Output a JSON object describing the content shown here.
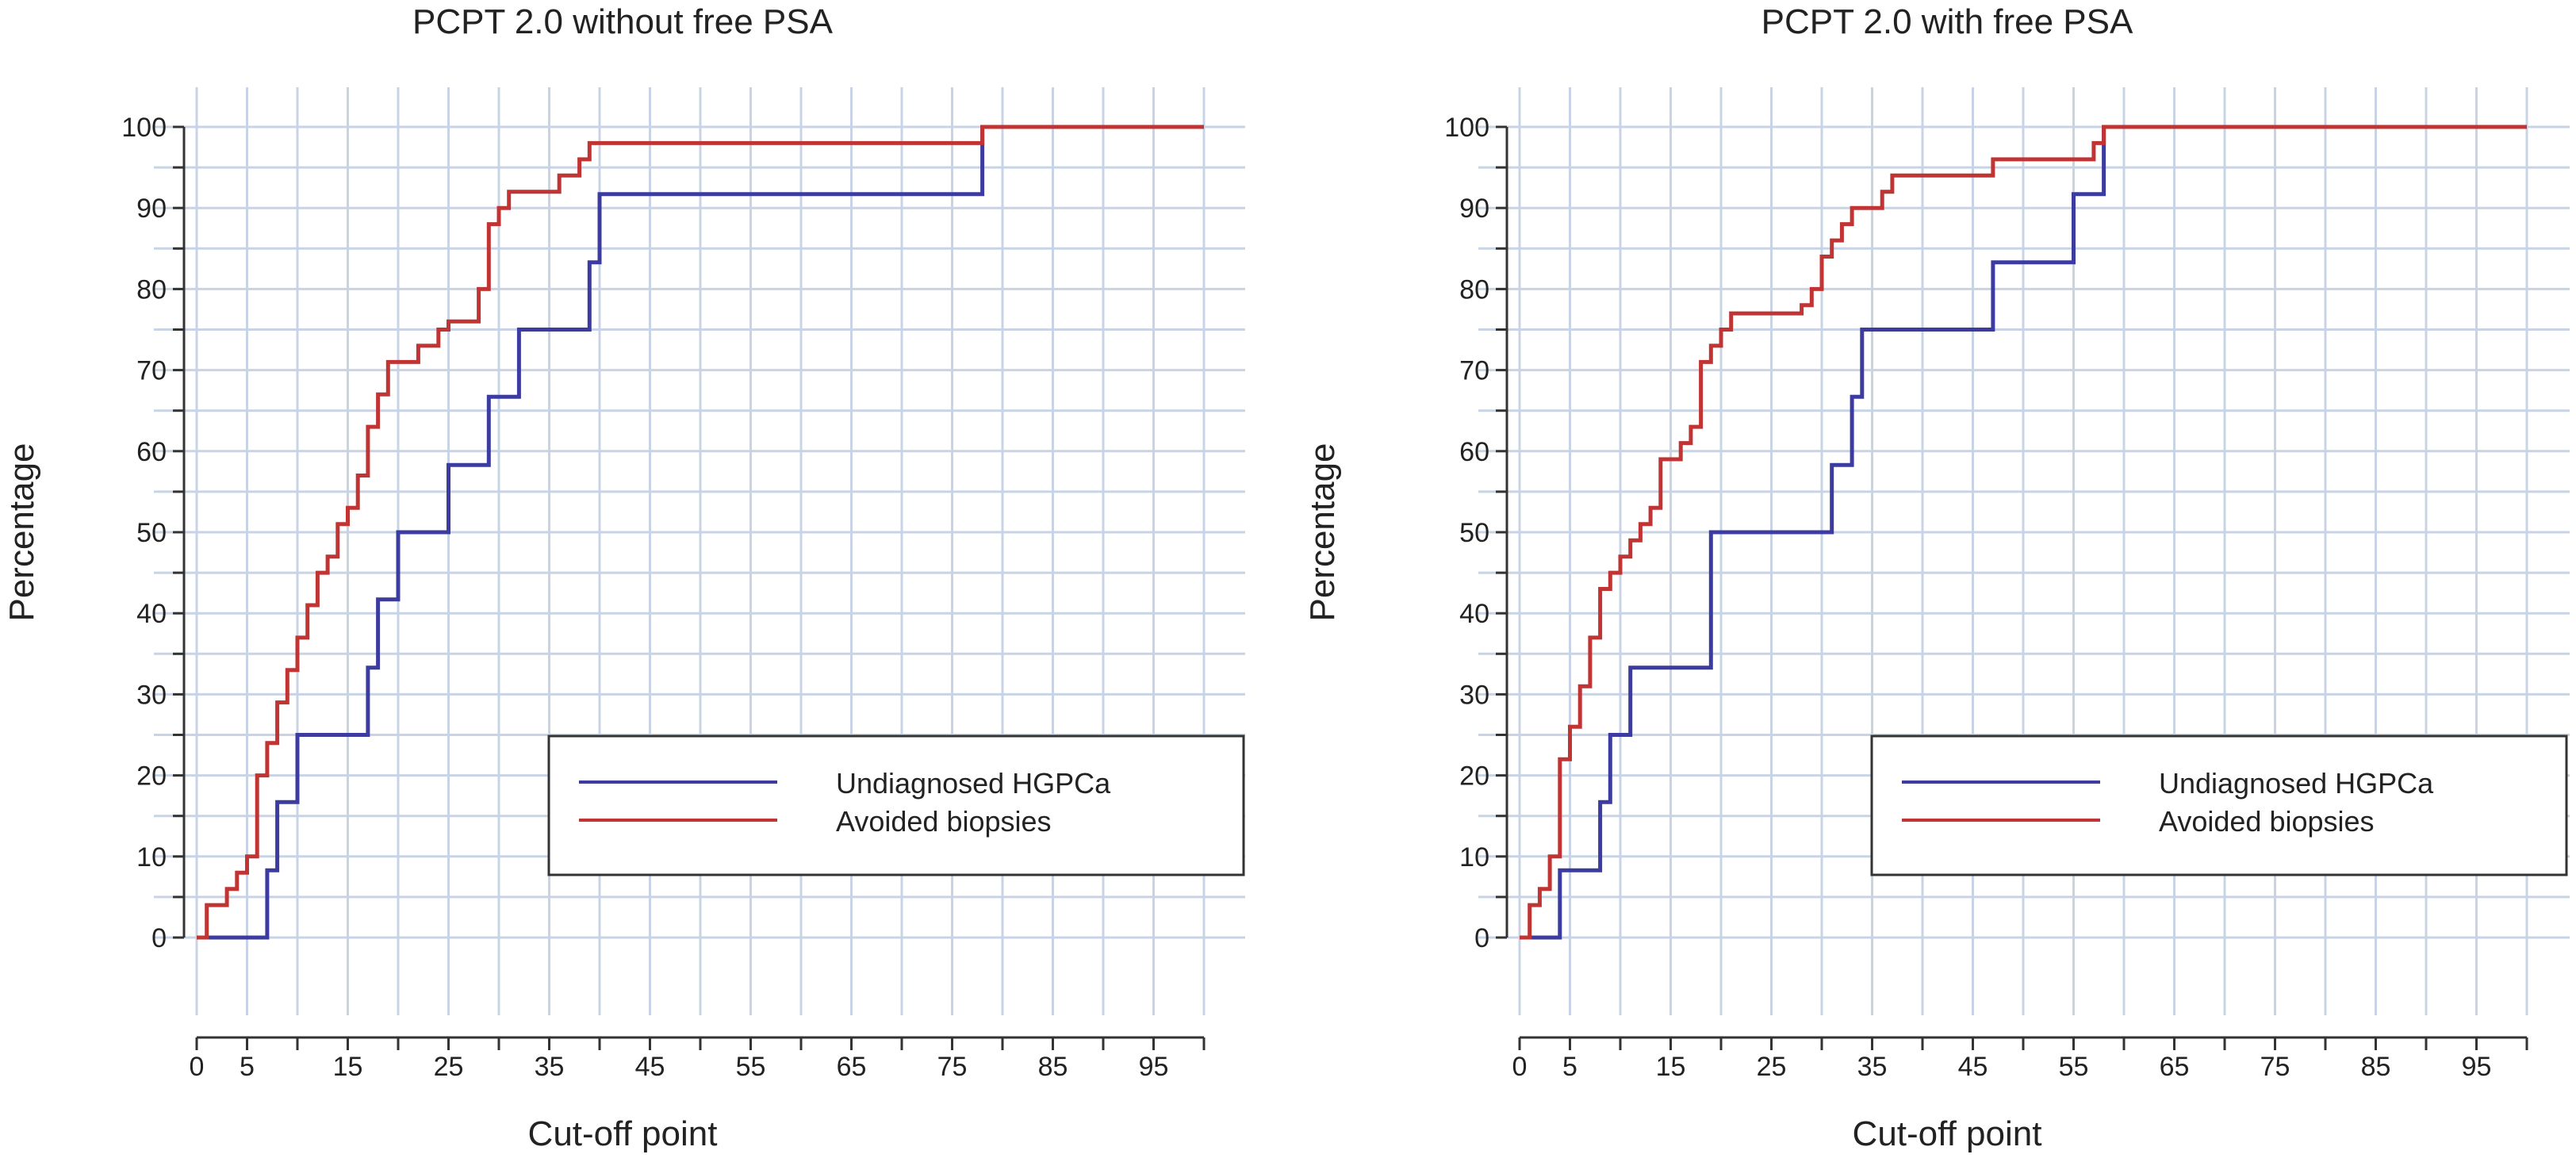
{
  "colors": {
    "undiagnosed": "#3c3ca0",
    "avoided": "#c03434",
    "grid": "#c8d4e6",
    "frame": "#333333",
    "panel_bg": "#ffffff"
  },
  "chart_data": [
    {
      "type": "line",
      "step": true,
      "title": "PCPT 2.0 without free PSA",
      "xlabel": "Cut-off point",
      "ylabel": "Percentage",
      "xlim": [
        0,
        100
      ],
      "ylim": [
        0,
        100
      ],
      "xticks": [
        0,
        5,
        15,
        25,
        35,
        45,
        55,
        65,
        75,
        85,
        95
      ],
      "yticks": [
        0,
        10,
        20,
        30,
        40,
        50,
        60,
        70,
        80,
        90,
        100
      ],
      "grid": true,
      "legend_position": "lower-right",
      "series": [
        {
          "name": "Undiagnosed HGPCa",
          "color_key": "undiagnosed",
          "x": [
            0,
            7,
            8,
            9,
            10,
            17,
            18,
            20,
            25,
            29,
            31,
            32,
            38,
            39,
            40,
            77,
            78,
            100
          ],
          "y": [
            0,
            8.3,
            16.7,
            16.7,
            25,
            33.3,
            41.7,
            50,
            58.3,
            66.7,
            66.7,
            75,
            75,
            83.3,
            91.7,
            91.7,
            100,
            100
          ]
        },
        {
          "name": "Avoided biopsies",
          "color_key": "avoided",
          "x": [
            0,
            1,
            3,
            4,
            5,
            6,
            7,
            8,
            9,
            10,
            11,
            12,
            13,
            14,
            15,
            16,
            17,
            18,
            19,
            20,
            22,
            24,
            25,
            26,
            28,
            29,
            30,
            31,
            32,
            36,
            38,
            39,
            40,
            77,
            78,
            100
          ],
          "y": [
            0,
            4,
            6,
            8,
            10,
            20,
            24,
            29,
            33,
            37,
            41,
            45,
            47,
            51,
            53,
            57,
            63,
            67,
            71,
            71,
            73,
            75,
            76,
            76,
            80,
            88,
            90,
            92,
            92,
            94,
            96,
            98,
            98,
            98,
            100,
            100
          ]
        }
      ]
    },
    {
      "type": "line",
      "step": true,
      "title": "PCPT 2.0 with free PSA",
      "xlabel": "Cut-off point",
      "ylabel": "Percentage",
      "xlim": [
        0,
        100
      ],
      "ylim": [
        0,
        100
      ],
      "xticks": [
        0,
        5,
        15,
        25,
        35,
        45,
        55,
        65,
        75,
        85,
        95
      ],
      "yticks": [
        0,
        10,
        20,
        30,
        40,
        50,
        60,
        70,
        80,
        90,
        100
      ],
      "grid": true,
      "legend_position": "lower-right",
      "series": [
        {
          "name": "Undiagnosed HGPCa",
          "color_key": "undiagnosed",
          "x": [
            0,
            4,
            8,
            9,
            11,
            19,
            30,
            31,
            33,
            34,
            46,
            47,
            54,
            55,
            57,
            58,
            100
          ],
          "y": [
            0,
            8.3,
            16.7,
            25,
            33.3,
            50,
            50,
            58.3,
            66.7,
            75,
            75,
            83.3,
            83.3,
            91.7,
            91.7,
            100,
            100
          ]
        },
        {
          "name": "Avoided biopsies",
          "color_key": "avoided",
          "x": [
            0,
            1,
            2,
            3,
            4,
            5,
            6,
            7,
            8,
            9,
            10,
            11,
            12,
            13,
            14,
            15,
            16,
            17,
            18,
            19,
            20,
            21,
            22,
            28,
            29,
            30,
            31,
            32,
            33,
            34,
            36,
            37,
            38,
            46,
            47,
            55,
            57,
            58,
            100
          ],
          "y": [
            0,
            4,
            6,
            10,
            22,
            26,
            31,
            37,
            43,
            45,
            47,
            49,
            51,
            53,
            59,
            59,
            61,
            63,
            71,
            73,
            75,
            77,
            77,
            78,
            80,
            84,
            86,
            88,
            90,
            90,
            92,
            94,
            94,
            94,
            96,
            96,
            98,
            100,
            100
          ]
        }
      ]
    }
  ]
}
